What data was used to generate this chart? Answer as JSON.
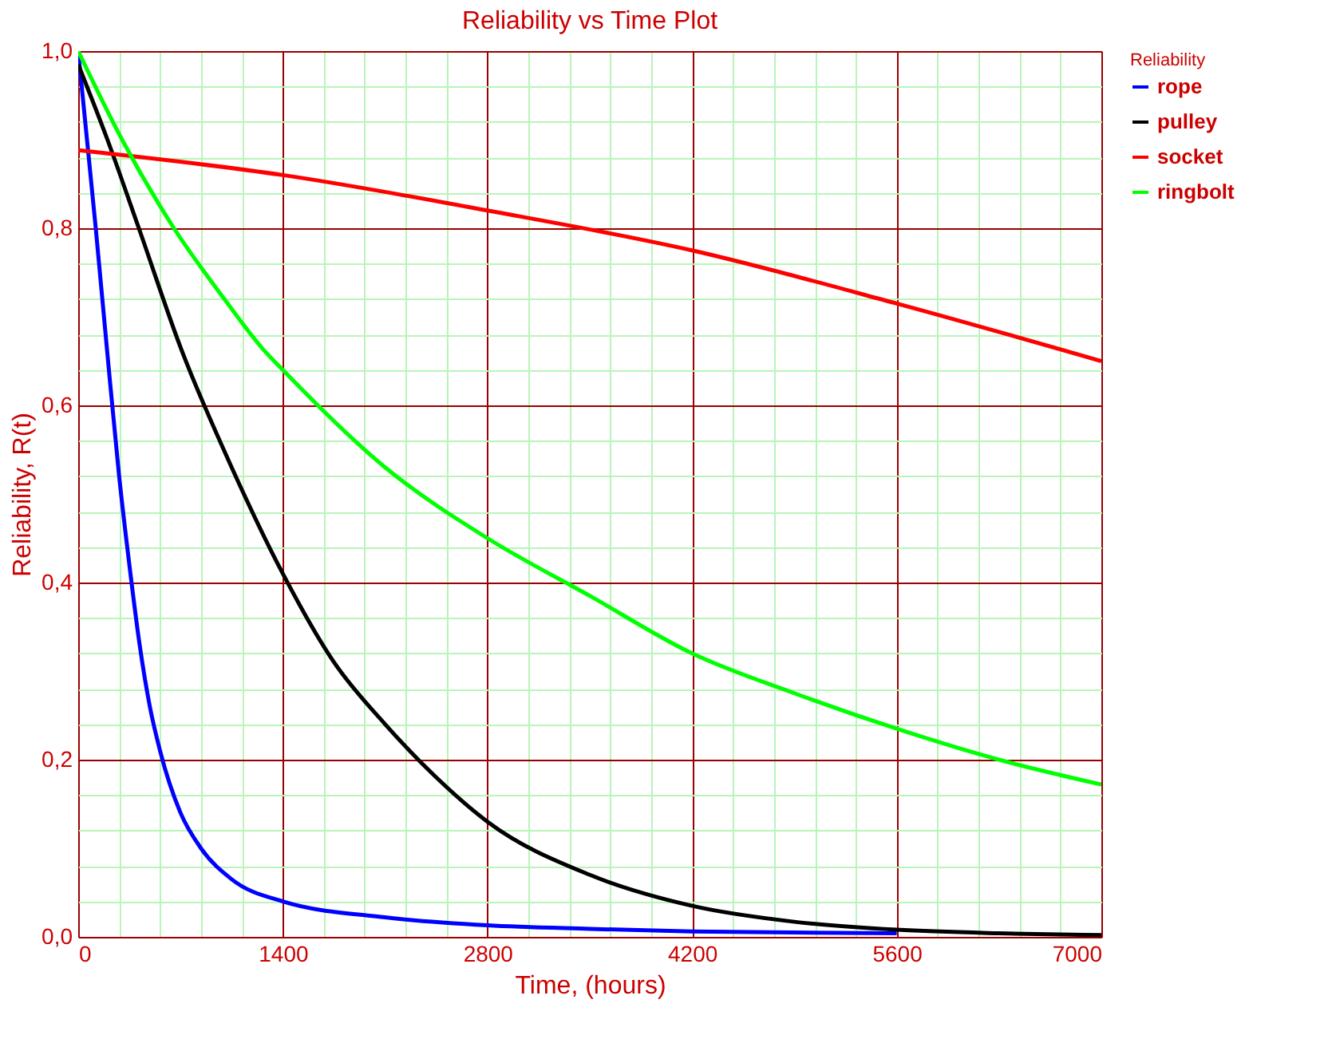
{
  "chart_data": {
    "type": "line",
    "title": "Reliability vs Time Plot",
    "xlabel": "Time, (hours)",
    "ylabel": "Reliability, R(t)",
    "legend_title": "Reliability",
    "xlim": [
      0,
      7000
    ],
    "ylim": [
      0,
      1
    ],
    "xticks": [
      0,
      {
        "value": 280,
        "label": null
      },
      {
        "value": 560,
        "label": null
      },
      {
        "value": 840,
        "label": null
      },
      {
        "value": 1120,
        "label": null
      },
      1400,
      {
        "value": 1680,
        "label": null
      },
      {
        "value": 1960,
        "label": null
      },
      {
        "value": 2240,
        "label": null
      },
      {
        "value": 2520,
        "label": null
      },
      2800,
      {
        "value": 3080,
        "label": null
      },
      {
        "value": 3360,
        "label": null
      },
      {
        "value": 3640,
        "label": null
      },
      {
        "value": 3920,
        "label": null
      },
      4200,
      {
        "value": 4480,
        "label": null
      },
      {
        "value": 4760,
        "label": null
      },
      {
        "value": 5040,
        "label": null
      },
      {
        "value": 5320,
        "label": null
      },
      5600,
      {
        "value": 5880,
        "label": null
      },
      {
        "value": 6160,
        "label": null
      },
      {
        "value": 6440,
        "label": null
      },
      {
        "value": 6720,
        "label": null
      },
      7000
    ],
    "yticks": [
      {
        "value": 0,
        "label": "0,0"
      },
      {
        "value": 0.04,
        "label": null
      },
      {
        "value": 0.08,
        "label": null
      },
      {
        "value": 0.12,
        "label": null
      },
      {
        "value": 0.16,
        "label": null
      },
      {
        "value": 0.2,
        "label": "0,2"
      },
      {
        "value": 0.24,
        "label": null
      },
      {
        "value": 0.28,
        "label": null
      },
      {
        "value": 0.32,
        "label": null
      },
      {
        "value": 0.36,
        "label": null
      },
      {
        "value": 0.4,
        "label": "0,4"
      },
      {
        "value": 0.44,
        "label": null
      },
      {
        "value": 0.48,
        "label": null
      },
      {
        "value": 0.52,
        "label": null
      },
      {
        "value": 0.56,
        "label": null
      },
      {
        "value": 0.6,
        "label": "0,6"
      },
      {
        "value": 0.64,
        "label": null
      },
      {
        "value": 0.68,
        "label": null
      },
      {
        "value": 0.72,
        "label": null
      },
      {
        "value": 0.76,
        "label": null
      },
      {
        "value": 0.8,
        "label": "0,8"
      },
      {
        "value": 0.84,
        "label": null
      },
      {
        "value": 0.88,
        "label": null
      },
      {
        "value": 0.92,
        "label": null
      },
      {
        "value": 0.96,
        "label": null
      },
      {
        "value": 1,
        "label": "1,0"
      }
    ],
    "grid": true,
    "legend": "right",
    "marker": "none",
    "line_style": "solid",
    "series": [
      {
        "name": "rope",
        "color": "#0000ff",
        "x": [
          0,
          60,
          120,
          197,
          280,
          350,
          420,
          490,
          560,
          700,
          840,
          1050,
          1400,
          2100,
          2800,
          3500,
          4200,
          5600
        ],
        "values": [
          1,
          0.9,
          0.8,
          0.663,
          0.52,
          0.42,
          0.33,
          0.26,
          0.21,
          0.14,
          0.1,
          0.065,
          0.04,
          0.022,
          0.013,
          0.009,
          0.006,
          0.004
        ]
      },
      {
        "name": "pulley",
        "color": "#000000",
        "x": [
          0,
          200,
          415,
          706,
          1050,
          1400,
          1750,
          2100,
          2450,
          2800,
          3500,
          4200,
          4900,
          5600,
          6300,
          7000
        ],
        "values": [
          0.985,
          0.9,
          0.8,
          0.663,
          0.53,
          0.41,
          0.31,
          0.24,
          0.18,
          0.13,
          0.07,
          0.035,
          0.017,
          0.008,
          0.004,
          0.002
        ]
      },
      {
        "name": "socket",
        "color": "#ff0000",
        "x": [
          0,
          1400,
          2800,
          4200,
          5600,
          7000
        ],
        "values": [
          0.888,
          0.86,
          0.82,
          0.775,
          0.715,
          0.65
        ]
      },
      {
        "name": "ringbolt",
        "color": "#00ff00",
        "x": [
          0,
          300,
          655,
          1000,
          1267,
          1400,
          2100,
          2800,
          3500,
          4200,
          4900,
          5600,
          6300,
          7000
        ],
        "values": [
          1,
          0.9,
          0.8,
          0.72,
          0.663,
          0.64,
          0.53,
          0.45,
          0.385,
          0.32,
          0.275,
          0.235,
          0.2,
          0.172
        ]
      }
    ]
  }
}
